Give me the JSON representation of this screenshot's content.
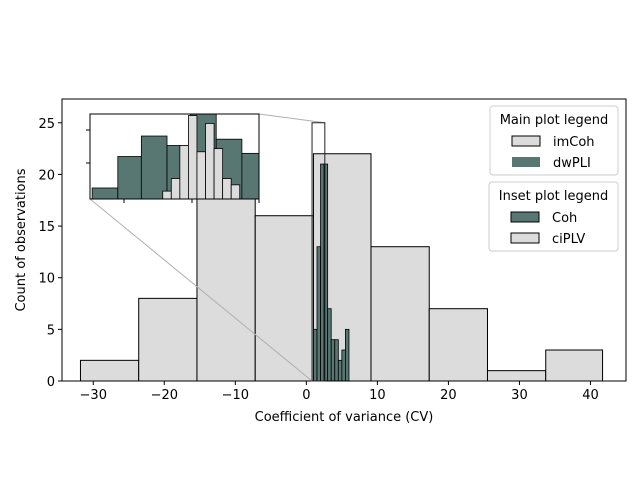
{
  "chart_data": {
    "type": "bar",
    "xlabel": "Coefficient of variance (CV)",
    "ylabel": "Count of observations",
    "xlim": [
      -34.4,
      45.0
    ],
    "ylim": [
      0,
      27.3
    ],
    "xticks": [
      -30,
      -20,
      -10,
      0,
      10,
      20,
      30,
      40
    ],
    "yticks": [
      0,
      5,
      10,
      15,
      20,
      25
    ],
    "grid": false,
    "colors": {
      "imcoh": "#dcdcdc",
      "dwpli": "#587773",
      "coh": "#587773",
      "ciplv": "#dcdcdc",
      "edge": "#000000"
    },
    "main_series": [
      {
        "name": "imCoh",
        "bin_edges": [
          -31.8,
          -23.6,
          -15.4,
          -7.2,
          1.0,
          9.1,
          17.3,
          25.5,
          33.7,
          41.7
        ],
        "counts": [
          2,
          8,
          19,
          16,
          22,
          13,
          7,
          1,
          3
        ]
      },
      {
        "name": "dwPLI",
        "bin_edges": [
          1.0,
          1.5,
          2.0,
          2.5,
          3.0,
          3.5,
          4.0,
          4.5,
          5.0,
          5.5,
          6.0,
          6.5,
          7.0
        ],
        "counts": [
          5,
          13,
          21,
          21,
          7,
          4,
          4,
          2,
          3,
          5,
          0,
          0
        ]
      }
    ],
    "inset": {
      "xlim": [
        -2.3,
        5.6
      ],
      "ylim": [
        0,
        5.4
      ],
      "main_coords_x": [
        0.8,
        2.6
      ],
      "main_coords_y": [
        0,
        25.0
      ],
      "series": [
        {
          "name": "Coh",
          "bin_edges": [
            -2.2,
            -1.0,
            0.1,
            1.3,
            2.4,
            3.6,
            4.8,
            5.6
          ],
          "counts": [
            0.7,
            2.7,
            4.0,
            3.4,
            5.4,
            3.8,
            2.9
          ]
        },
        {
          "name": "ciPLV",
          "bin_edges": [
            1.1,
            1.5,
            1.9,
            2.3,
            2.7,
            3.1,
            3.5,
            3.9,
            4.3,
            4.7
          ],
          "counts": [
            0.5,
            1.3,
            3.4,
            5.3,
            3.0,
            4.8,
            3.2,
            1.3,
            0.9
          ]
        }
      ]
    },
    "legends": {
      "main": {
        "title": "Main plot legend",
        "entries": [
          "imCoh",
          "dwPLI"
        ],
        "position": "upper-right"
      },
      "inset": {
        "title": "Inset plot legend",
        "entries": [
          "Coh",
          "ciPLV"
        ],
        "position": "right"
      }
    }
  }
}
